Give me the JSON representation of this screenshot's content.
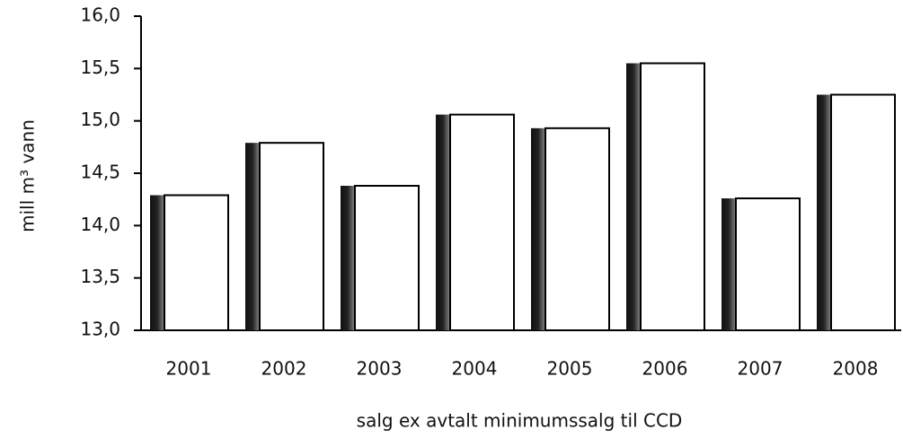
{
  "chart_data": {
    "type": "bar",
    "y_label": "mill m³ vann",
    "x_label": "salg ex avtalt minimumssalg til CCD",
    "categories": [
      "2001",
      "2002",
      "2003",
      "2004",
      "2005",
      "2006",
      "2007",
      "2008"
    ],
    "values": [
      14.29,
      14.79,
      14.38,
      15.06,
      14.93,
      15.55,
      14.26,
      15.25
    ],
    "color": "#ffffff",
    "ylim": [
      13,
      16
    ],
    "yticks": [
      {
        "value": 13,
        "label": "13,0"
      },
      {
        "value": 13.5,
        "label": "13,5"
      },
      {
        "value": 14,
        "label": "14,0"
      },
      {
        "value": 14.5,
        "label": "14,5"
      },
      {
        "value": 15,
        "label": "15,0"
      },
      {
        "value": 15.5,
        "label": "15,5"
      },
      {
        "value": 16,
        "label": "16,0"
      }
    ],
    "grid": false
  }
}
